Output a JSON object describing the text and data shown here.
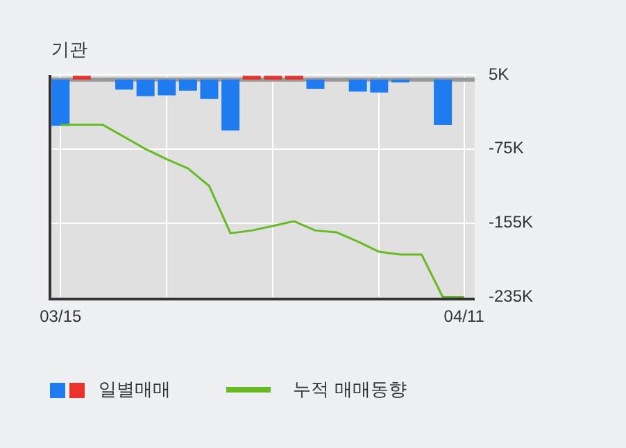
{
  "chart_data": {
    "type": "bar",
    "title": "기관",
    "categories": [
      "03/15",
      null,
      null,
      null,
      null,
      null,
      null,
      null,
      null,
      null,
      null,
      null,
      null,
      null,
      null,
      null,
      null,
      null,
      null,
      "04/11"
    ],
    "series": [
      {
        "name": "일별매매",
        "colors": [
          "#1e7cf0",
          "#e8322a",
          "#1e7cf0",
          "#1e7cf0",
          "#1e7cf0",
          "#1e7cf0",
          "#1e7cf0",
          "#1e7cf0",
          "#1e7cf0",
          "#e8322a",
          "#e8322a",
          "#e8322a",
          "#1e7cf0",
          "#1e7cf0",
          "#1e7cf0",
          "#1e7cf0",
          "#1e7cf0",
          "#1e7cf0",
          "#1e7cf0",
          "#1e7cf0"
        ],
        "values": [
          -50,
          4,
          0,
          -11,
          -18,
          -17,
          -12,
          -21,
          -55,
          4,
          4,
          4,
          -10,
          0,
          -13,
          -14,
          -3,
          0,
          -49,
          0
        ]
      },
      {
        "type": "line",
        "name": "누적 매매동향",
        "color": "#66bb22",
        "values": [
          -49,
          -49,
          -49,
          -62,
          -75,
          -86,
          -96,
          -115,
          -166,
          -163,
          -158,
          -153,
          -163,
          -165,
          -175,
          -186,
          -189,
          -189,
          -235,
          -235
        ]
      }
    ],
    "ylim": [
      -237,
      5
    ],
    "yticks": [
      {
        "value": 5,
        "label": "5K"
      },
      {
        "value": -75,
        "label": "-75K"
      },
      {
        "value": -155,
        "label": "-155K"
      },
      {
        "value": -235,
        "label": "-235K"
      }
    ],
    "ref_lines": [
      {
        "axis": "y",
        "value": 0,
        "color": "#999999"
      }
    ],
    "grid": true,
    "legend": "bottom",
    "marker": "none"
  }
}
